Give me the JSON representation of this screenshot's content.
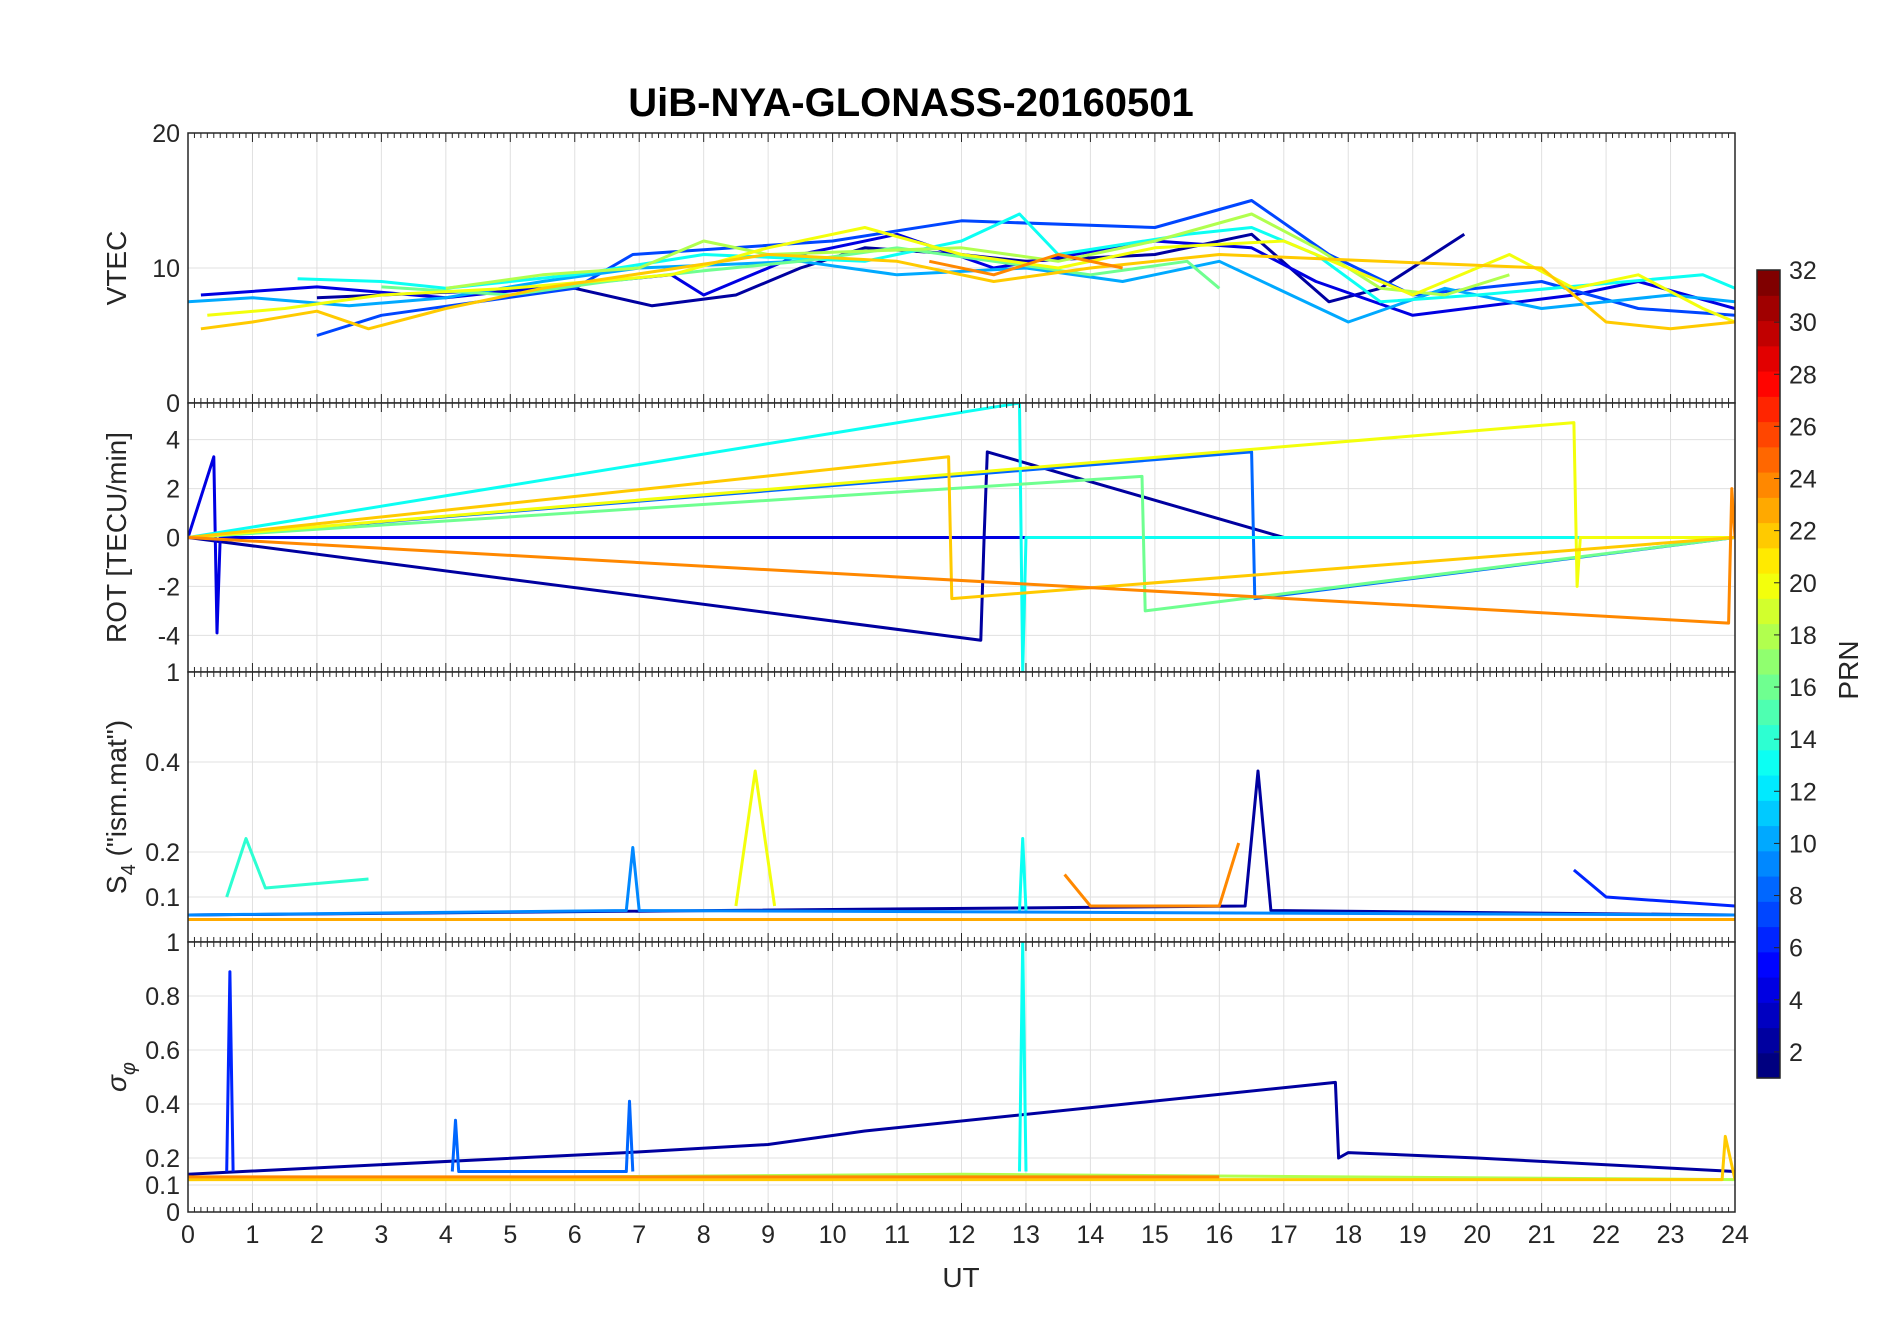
{
  "chart_data": {
    "type": "line",
    "title": "UiB-NYA-GLONASS-20160501",
    "xlabel": "UT",
    "xlim": [
      0,
      24
    ],
    "xticks": [
      "0",
      "1",
      "2",
      "3",
      "4",
      "5",
      "6",
      "7",
      "8",
      "9",
      "10",
      "11",
      "12",
      "13",
      "14",
      "15",
      "16",
      "17",
      "18",
      "19",
      "20",
      "21",
      "22",
      "23",
      "24"
    ],
    "grid": true,
    "panels": [
      {
        "id": "vtec",
        "ylabel": "VTEC",
        "ylim": [
          0,
          20
        ],
        "yticks": [
          10,
          20
        ],
        "ytick_labels": [
          "10",
          "20"
        ],
        "series": [
          {
            "prn": 2,
            "x": [
              2.0,
              4.0,
              6.0,
              7.2,
              8.5,
              9.5,
              10.5,
              12.0,
              13.0,
              15.0,
              16.5,
              17.7,
              18.5,
              19.8
            ],
            "y": [
              7.8,
              8.2,
              8.5,
              7.2,
              8.0,
              10.0,
              11.5,
              11.0,
              10.5,
              11.0,
              12.5,
              7.5,
              8.5,
              12.5
            ]
          },
          {
            "prn": 4,
            "x": [
              0.2,
              2.0,
              4.0,
              6.0,
              7.5,
              8.0,
              9.5,
              11.0,
              12.5,
              15.0,
              16.5,
              17.5,
              19.0,
              21.5,
              22.5,
              24.0
            ],
            "y": [
              8.0,
              8.6,
              7.8,
              8.8,
              9.5,
              8.0,
              11.0,
              12.5,
              10.0,
              12.0,
              11.5,
              9.0,
              6.5,
              8.0,
              9.0,
              7.0
            ]
          },
          {
            "prn": 7,
            "x": [
              2.0,
              3.0,
              4.5,
              6.0,
              6.9,
              10.0,
              12.0,
              15.0,
              16.5,
              17.7,
              19.0,
              21.0,
              22.5,
              24.0
            ],
            "y": [
              5.0,
              6.5,
              7.5,
              8.5,
              11.0,
              12.0,
              13.5,
              13.0,
              15.0,
              11.0,
              8.0,
              9.0,
              7.0,
              6.5
            ]
          },
          {
            "prn": 10,
            "x": [
              0.0,
              1.0,
              2.5,
              4.0,
              5.5,
              7.0,
              9.5,
              11.0,
              13.0,
              14.5,
              16.0,
              18.0,
              19.5,
              21.0,
              23.0,
              24.0
            ],
            "y": [
              7.5,
              7.8,
              7.2,
              7.8,
              9.0,
              10.0,
              10.5,
              9.5,
              10.0,
              9.0,
              10.5,
              6.0,
              8.5,
              7.0,
              8.0,
              7.5
            ]
          },
          {
            "prn": 13,
            "x": [
              1.7,
              3.0,
              4.0,
              6.0,
              8.0,
              10.5,
              12.0,
              12.9,
              13.5,
              15.5,
              16.5,
              17.5,
              18.5,
              20.0,
              23.5,
              24.0
            ],
            "y": [
              9.2,
              9.0,
              8.5,
              9.5,
              11.0,
              10.5,
              12.0,
              14.0,
              11.0,
              12.5,
              13.0,
              11.0,
              7.5,
              8.0,
              9.5,
              8.5
            ]
          },
          {
            "prn": 16,
            "x": [
              3.0,
              5.0,
              6.5,
              8.0,
              9.5,
              11.0,
              12.5,
              14.0,
              15.5,
              16.0
            ],
            "y": [
              8.6,
              8.0,
              9.0,
              9.8,
              10.5,
              11.5,
              10.5,
              9.5,
              10.5,
              8.5
            ]
          },
          {
            "prn": 18,
            "x": [
              4.0,
              5.5,
              7.0,
              8.0,
              9.0,
              12.0,
              13.5,
              15.0,
              16.5,
              17.5,
              18.5,
              19.5,
              20.5
            ],
            "y": [
              8.5,
              9.5,
              10.0,
              12.0,
              11.0,
              11.5,
              10.5,
              12.0,
              14.0,
              11.5,
              8.5,
              8.0,
              9.5
            ]
          },
          {
            "prn": 20,
            "x": [
              0.3,
              1.5,
              3.0,
              5.0,
              7.5,
              9.0,
              10.5,
              12.0,
              13.5,
              15.0,
              17.0,
              19.0,
              20.5,
              21.5,
              22.5,
              23.5,
              24.0
            ],
            "y": [
              6.5,
              7.0,
              8.0,
              8.5,
              9.5,
              11.5,
              13.0,
              11.0,
              10.0,
              11.5,
              12.0,
              8.0,
              11.0,
              8.5,
              9.5,
              7.0,
              6.0
            ]
          },
          {
            "prn": 22,
            "x": [
              0.2,
              1.0,
              2.0,
              2.8,
              4.0,
              5.5,
              9.0,
              11.0,
              12.5,
              14.0,
              16.0,
              21.0,
              22.0,
              23.0,
              24.0
            ],
            "y": [
              5.5,
              6.0,
              6.8,
              5.5,
              7.0,
              8.5,
              11.0,
              10.5,
              9.0,
              10.0,
              11.0,
              10.0,
              6.0,
              5.5,
              6.0
            ]
          },
          {
            "prn": 24,
            "x": [
              11.5,
              12.5,
              13.5,
              14.5
            ],
            "y": [
              10.5,
              9.5,
              11.0,
              10.0
            ]
          }
        ]
      },
      {
        "id": "rot",
        "ylabel": "ROT [TECU/min]",
        "ylim": [
          -5.5,
          5.5
        ],
        "yticks": [
          -4,
          -2,
          0,
          2,
          4
        ],
        "ytick_labels": [
          "-4",
          "-2",
          "0",
          "2",
          "4"
        ],
        "top_tick_label": "0",
        "series": [
          {
            "prn": 2,
            "x": [
              0.0,
              12.3,
              12.35,
              12.4,
              17.0,
              24.0
            ],
            "y": [
              0.0,
              -4.2,
              0.0,
              3.5,
              0.0,
              0.0
            ]
          },
          {
            "prn": 4,
            "x": [
              0.0,
              0.4,
              0.45,
              0.5,
              24.0
            ],
            "y": [
              0.0,
              3.3,
              -3.9,
              0.0,
              0.0
            ]
          },
          {
            "prn": 8,
            "x": [
              0.0,
              16.5,
              16.55,
              24.0
            ],
            "y": [
              0.0,
              3.5,
              -2.5,
              0.0
            ]
          },
          {
            "prn": 13,
            "x": [
              0.0,
              12.9,
              12.95,
              13.0,
              24.0
            ],
            "y": [
              0.0,
              5.5,
              -5.5,
              0.0,
              0.0
            ]
          },
          {
            "prn": 16,
            "x": [
              0.0,
              14.8,
              14.85,
              24.0
            ],
            "y": [
              0.0,
              2.5,
              -3.0,
              0.0
            ]
          },
          {
            "prn": 20,
            "x": [
              0.0,
              21.5,
              21.55,
              21.6,
              24.0
            ],
            "y": [
              0.0,
              4.7,
              -2.0,
              0.0,
              0.0
            ]
          },
          {
            "prn": 22,
            "x": [
              0.0,
              11.8,
              11.85,
              24.0
            ],
            "y": [
              0.0,
              3.3,
              -2.5,
              0.0
            ]
          },
          {
            "prn": 24,
            "x": [
              0.0,
              23.9,
              23.95,
              24.0
            ],
            "y": [
              0.0,
              -3.5,
              2.0,
              0.0
            ]
          }
        ]
      },
      {
        "id": "s4",
        "ylabel": "S4 (\"ism.mat\")",
        "ylim": [
          0,
          0.6
        ],
        "yticks": [
          0.1,
          0.2,
          0.4
        ],
        "ytick_labels": [
          "0.1",
          "0.2",
          "0.4"
        ],
        "top_tick_label": "1",
        "series": [
          {
            "prn": 2,
            "x": [
              0.0,
              16.4,
              16.6,
              16.8,
              24.0
            ],
            "y": [
              0.06,
              0.08,
              0.38,
              0.07,
              0.06
            ]
          },
          {
            "prn": 6,
            "x": [
              21.5,
              22.0,
              24.0
            ],
            "y": [
              0.16,
              0.1,
              0.08
            ]
          },
          {
            "prn": 9,
            "x": [
              0.0,
              6.8,
              6.9,
              7.0,
              24.0
            ],
            "y": [
              0.06,
              0.07,
              0.21,
              0.07,
              0.06
            ]
          },
          {
            "prn": 14,
            "x": [
              0.6,
              0.9,
              1.2,
              2.8
            ],
            "y": [
              0.1,
              0.23,
              0.12,
              0.14
            ]
          },
          {
            "prn": 13,
            "x": [
              12.9,
              12.95,
              13.0
            ],
            "y": [
              0.07,
              0.23,
              0.07
            ]
          },
          {
            "prn": 20,
            "x": [
              8.5,
              8.8,
              9.1
            ],
            "y": [
              0.08,
              0.38,
              0.08
            ]
          },
          {
            "prn": 24,
            "x": [
              13.6,
              14.0,
              16.0,
              16.3
            ],
            "y": [
              0.15,
              0.08,
              0.08,
              0.22
            ]
          },
          {
            "prn": 23,
            "x": [
              0.0,
              24.0
            ],
            "y": [
              0.05,
              0.05
            ]
          }
        ]
      },
      {
        "id": "sigma_phi",
        "ylabel": "σφ",
        "ylim": [
          0,
          1
        ],
        "yticks": [
          0,
          0.1,
          0.2,
          0.4,
          0.6,
          0.8
        ],
        "ytick_labels": [
          "0",
          "0.1",
          "0.2",
          "0.4",
          "0.6",
          "0.8"
        ],
        "top_tick_label": "1",
        "series": [
          {
            "prn": 2,
            "x": [
              0.0,
              6.8,
              9.0,
              10.5,
              17.8,
              17.85,
              18.0,
              20.0,
              24.0
            ],
            "y": [
              0.14,
              0.22,
              0.25,
              0.3,
              0.48,
              0.2,
              0.22,
              0.2,
              0.15
            ]
          },
          {
            "prn": 6,
            "x": [
              0.6,
              0.65,
              0.7
            ],
            "y": [
              0.15,
              0.89,
              0.15
            ]
          },
          {
            "prn": 8,
            "x": [
              4.1,
              4.15,
              4.2,
              6.8,
              6.85,
              6.9
            ],
            "y": [
              0.15,
              0.34,
              0.15,
              0.15,
              0.41,
              0.15
            ]
          },
          {
            "prn": 13,
            "x": [
              12.9,
              12.95,
              13.0
            ],
            "y": [
              0.15,
              1.0,
              0.15
            ]
          },
          {
            "prn": 18,
            "x": [
              0.0,
              12.0,
              24.0
            ],
            "y": [
              0.12,
              0.14,
              0.12
            ]
          },
          {
            "prn": 22,
            "x": [
              0.0,
              23.8,
              23.85,
              24.0
            ],
            "y": [
              0.12,
              0.12,
              0.28,
              0.12
            ]
          },
          {
            "prn": 24,
            "x": [
              0.0,
              16.0
            ],
            "y": [
              0.13,
              0.13
            ]
          }
        ]
      }
    ],
    "colorbar": {
      "label": "PRN",
      "range": [
        1,
        32
      ],
      "colormap": "jet",
      "ticks": [
        2,
        4,
        6,
        8,
        10,
        12,
        14,
        16,
        18,
        20,
        22,
        24,
        26,
        28,
        30,
        32
      ],
      "tick_labels": [
        "2",
        "4",
        "6",
        "8",
        "10",
        "12",
        "14",
        "16",
        "18",
        "20",
        "22",
        "24",
        "26",
        "28",
        "30",
        "32"
      ]
    }
  }
}
